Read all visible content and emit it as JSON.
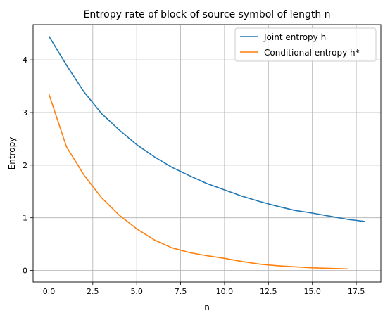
{
  "chart_data": {
    "type": "line",
    "title": "Entropy rate of block of source symbol of length n",
    "xlabel": "n",
    "ylabel": "Entropy",
    "xlim": [
      -0.9,
      18.9
    ],
    "ylim": [
      -0.22,
      4.67
    ],
    "x_ticks": [
      0.0,
      2.5,
      5.0,
      7.5,
      10.0,
      12.5,
      15.0,
      17.5
    ],
    "x_tick_labels": [
      "0.0",
      "2.5",
      "5.0",
      "7.5",
      "10.0",
      "12.5",
      "15.0",
      "17.5"
    ],
    "y_ticks": [
      0,
      1,
      2,
      3,
      4
    ],
    "y_tick_labels": [
      "0",
      "1",
      "2",
      "3",
      "4"
    ],
    "grid": true,
    "legend_position": "top-right",
    "series": [
      {
        "name": "Joint entropy h",
        "color": "#1f77b4",
        "x": [
          0,
          1,
          2,
          3,
          4,
          5,
          6,
          7,
          8,
          9,
          10,
          11,
          12,
          13,
          14,
          15,
          16,
          17,
          18
        ],
        "values": [
          4.45,
          3.9,
          3.39,
          2.98,
          2.67,
          2.39,
          2.16,
          1.96,
          1.8,
          1.65,
          1.53,
          1.41,
          1.31,
          1.22,
          1.14,
          1.09,
          1.03,
          0.97,
          0.93
        ]
      },
      {
        "name": "Conditional entropy h*",
        "color": "#ff7f0e",
        "x": [
          0,
          1,
          2,
          3,
          4,
          5,
          6,
          7,
          8,
          9,
          10,
          11,
          12,
          13,
          14,
          15,
          16,
          17
        ],
        "values": [
          3.35,
          2.35,
          1.81,
          1.38,
          1.05,
          0.79,
          0.58,
          0.43,
          0.34,
          0.28,
          0.23,
          0.17,
          0.12,
          0.09,
          0.07,
          0.05,
          0.04,
          0.03
        ]
      }
    ]
  }
}
